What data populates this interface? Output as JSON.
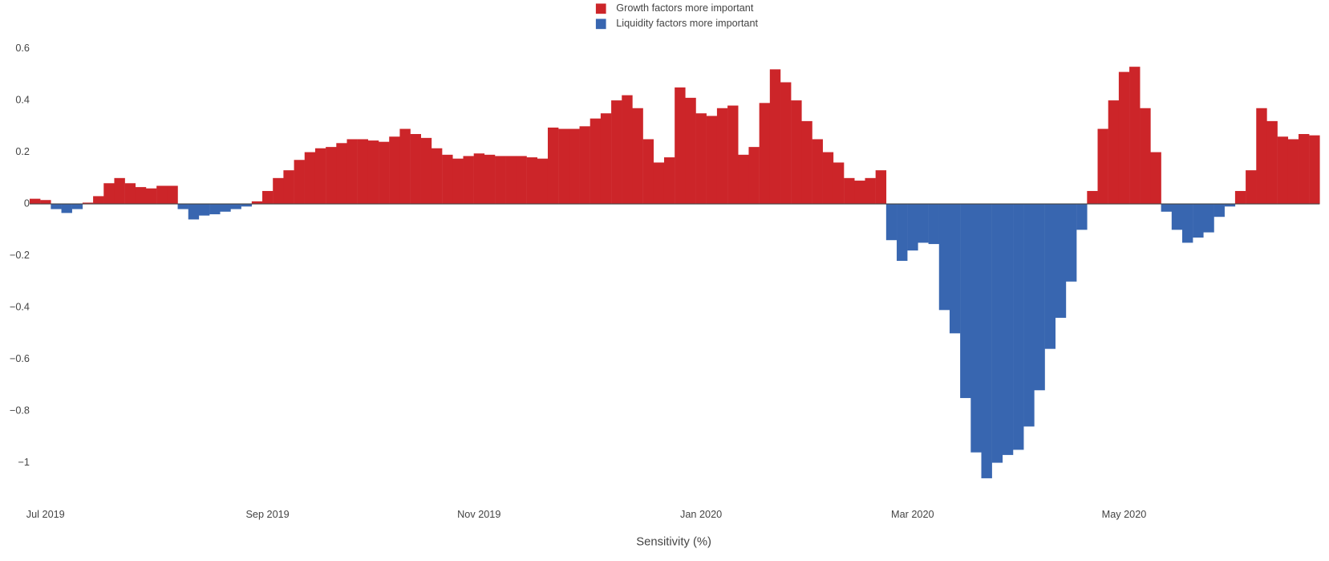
{
  "chart_data": {
    "type": "bar",
    "x_label": "Sensitivity (%)",
    "categories": [
      null,
      "Jul 2019",
      null,
      null,
      null,
      null,
      null,
      null,
      null,
      null,
      null,
      null,
      null,
      null,
      null,
      null,
      null,
      null,
      null,
      null,
      null,
      null,
      "Sep 2019",
      null,
      null,
      null,
      null,
      null,
      null,
      null,
      null,
      null,
      null,
      null,
      null,
      null,
      null,
      null,
      null,
      null,
      null,
      null,
      "Nov 2019",
      null,
      null,
      null,
      null,
      null,
      null,
      null,
      null,
      null,
      null,
      null,
      null,
      null,
      null,
      null,
      null,
      null,
      null,
      null,
      null,
      "Jan 2020",
      null,
      null,
      null,
      null,
      null,
      null,
      null,
      null,
      null,
      null,
      null,
      null,
      null,
      null,
      null,
      null,
      null,
      null,
      null,
      "Mar 2020",
      null,
      null,
      null,
      null,
      null,
      null,
      null,
      null,
      null,
      null,
      null,
      null,
      null,
      null,
      null,
      null,
      null,
      null,
      null,
      "May 2020",
      null,
      null,
      null,
      null,
      null,
      null,
      null,
      null,
      null,
      null,
      null,
      null,
      null,
      null,
      null,
      null,
      null,
      null
    ],
    "series": [
      {
        "name": "Growth factors more important",
        "color": "#cc2529",
        "values": [
          0.02,
          0.015,
          null,
          null,
          null,
          0.005,
          0.03,
          0.08,
          0.1,
          0.08,
          0.065,
          0.06,
          0.07,
          0.07,
          null,
          null,
          null,
          null,
          null,
          null,
          null,
          0.01,
          0.05,
          0.1,
          0.13,
          0.17,
          0.2,
          0.215,
          0.22,
          0.235,
          0.25,
          0.25,
          0.245,
          0.24,
          0.26,
          0.29,
          0.27,
          0.255,
          0.215,
          0.19,
          0.175,
          0.185,
          0.195,
          0.19,
          0.185,
          0.185,
          0.185,
          0.18,
          0.175,
          0.295,
          0.29,
          0.29,
          0.3,
          0.33,
          0.35,
          0.4,
          0.42,
          0.37,
          0.25,
          0.16,
          0.18,
          0.45,
          0.41,
          0.35,
          0.34,
          0.37,
          0.38,
          0.19,
          0.22,
          0.39,
          0.52,
          0.47,
          0.4,
          0.32,
          0.25,
          0.2,
          0.16,
          0.1,
          0.09,
          0.1,
          0.13,
          null,
          null,
          null,
          null,
          null,
          null,
          null,
          null,
          null,
          null,
          null,
          null,
          null,
          null,
          null,
          null,
          null,
          null,
          null,
          0.05,
          0.29,
          0.4,
          0.51,
          0.53,
          0.37,
          0.2,
          null,
          null,
          null,
          null,
          null,
          null,
          null,
          0.05,
          0.13,
          0.37,
          0.32,
          0.26,
          0.25,
          0.27,
          0.265
        ]
      },
      {
        "name": "Liquidity factors more important",
        "color": "#3866b0",
        "values": [
          null,
          null,
          -0.02,
          -0.035,
          -0.02,
          null,
          null,
          null,
          null,
          null,
          null,
          null,
          null,
          null,
          -0.02,
          -0.06,
          -0.045,
          -0.04,
          -0.03,
          -0.02,
          -0.01,
          null,
          null,
          null,
          null,
          null,
          null,
          null,
          null,
          null,
          null,
          null,
          null,
          null,
          null,
          null,
          null,
          null,
          null,
          null,
          null,
          null,
          null,
          null,
          null,
          null,
          null,
          null,
          null,
          null,
          null,
          null,
          null,
          null,
          null,
          null,
          null,
          null,
          null,
          null,
          null,
          null,
          null,
          null,
          null,
          null,
          null,
          null,
          null,
          null,
          null,
          null,
          null,
          null,
          null,
          null,
          null,
          null,
          null,
          null,
          null,
          -0.14,
          -0.22,
          -0.18,
          -0.15,
          -0.155,
          -0.41,
          -0.5,
          -0.75,
          -0.96,
          -1.06,
          -1.0,
          -0.97,
          -0.95,
          -0.86,
          -0.72,
          -0.56,
          -0.44,
          -0.3,
          -0.1,
          null,
          null,
          null,
          null,
          null,
          null,
          null,
          -0.03,
          -0.1,
          -0.15,
          -0.13,
          -0.11,
          -0.05,
          -0.01,
          null,
          null,
          null,
          null,
          null,
          null,
          null,
          null
        ]
      }
    ],
    "ylim": [
      -1.12,
      0.62
    ],
    "yticks": [
      0.6,
      0.4,
      0.2,
      0,
      {
        "value": -0.2,
        "label": "−0.2"
      },
      {
        "value": -0.4,
        "label": "−0.4"
      },
      {
        "value": -0.6,
        "label": "−0.6"
      },
      {
        "value": -0.8,
        "label": "−0.8"
      },
      {
        "value": -1,
        "label": "−1"
      }
    ],
    "zero_line": true,
    "legend": "top"
  }
}
